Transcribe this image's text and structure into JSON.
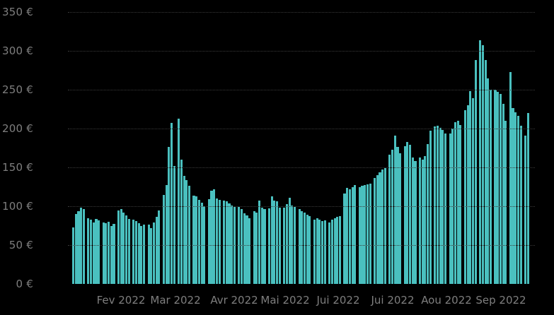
{
  "page": {
    "background_color": "#000000"
  },
  "chart_data": {
    "type": "bar",
    "title": "",
    "xlabel": "",
    "ylabel": "",
    "currency_unit": "€",
    "ylim": [
      0,
      350
    ],
    "grid": "horizontal-dotted",
    "legend": "none",
    "bar_color": "#4ac0bf",
    "axis_text_color": "#7e7e7e",
    "gridline_color": "#3a3a3a",
    "background_color": "#000000",
    "y_tick_values": [
      0,
      50,
      100,
      150,
      200,
      250,
      300,
      350
    ],
    "y_tick_labels": [
      "0 €",
      "50 €",
      "100 €",
      "150 €",
      "200 €",
      "250 €",
      "300 €",
      "350 €"
    ],
    "x_tick_labels": [
      "Fev 2022",
      "Mar 2022",
      "Avr 2022",
      "Mai 2022",
      "Jui 2022",
      "Jui 2022",
      "Aou 2022",
      "Sep 2022"
    ],
    "groups": [
      [
        73,
        90,
        94,
        98,
        96
      ],
      [
        85,
        83,
        79,
        84,
        82
      ],
      [
        79,
        78,
        80,
        75,
        77
      ],
      [
        95,
        96,
        92,
        88,
        84
      ],
      [
        83,
        81,
        78,
        75,
        76
      ],
      [
        76,
        72,
        79,
        86,
        95
      ],
      [
        115,
        127,
        176,
        207,
        152
      ],
      [
        213,
        160,
        139,
        134,
        126
      ],
      [
        114,
        113,
        108,
        105,
        100
      ],
      [
        109,
        120,
        122,
        110,
        108
      ],
      [
        107,
        106,
        104,
        101,
        99
      ],
      [
        99,
        96,
        91,
        88,
        85
      ],
      [
        94,
        92,
        107,
        98,
        96
      ],
      [
        97,
        113,
        107,
        106,
        98
      ],
      [
        98,
        103,
        111,
        101,
        99
      ],
      [
        96,
        94,
        92,
        89,
        87
      ],
      [
        83,
        85,
        83,
        81,
        82
      ],
      [
        79,
        83,
        85,
        86,
        87
      ],
      [
        116,
        124,
        122,
        125,
        127
      ],
      [
        125,
        126,
        127,
        128,
        129
      ],
      [
        136,
        140,
        144,
        147,
        149
      ],
      [
        166,
        173,
        191,
        176,
        168
      ],
      [
        177,
        183,
        179,
        163,
        158
      ],
      [
        163,
        160,
        165,
        180,
        197
      ],
      [
        203,
        204,
        201,
        198,
        194
      ],
      [
        194,
        200,
        208,
        210,
        205
      ],
      [
        224,
        230,
        248,
        239,
        288
      ],
      [
        314,
        307,
        288,
        265,
        250
      ],
      [
        250,
        247,
        245,
        232,
        210
      ],
      [
        273,
        226,
        221,
        216,
        204
      ],
      [
        191,
        220
      ]
    ]
  }
}
